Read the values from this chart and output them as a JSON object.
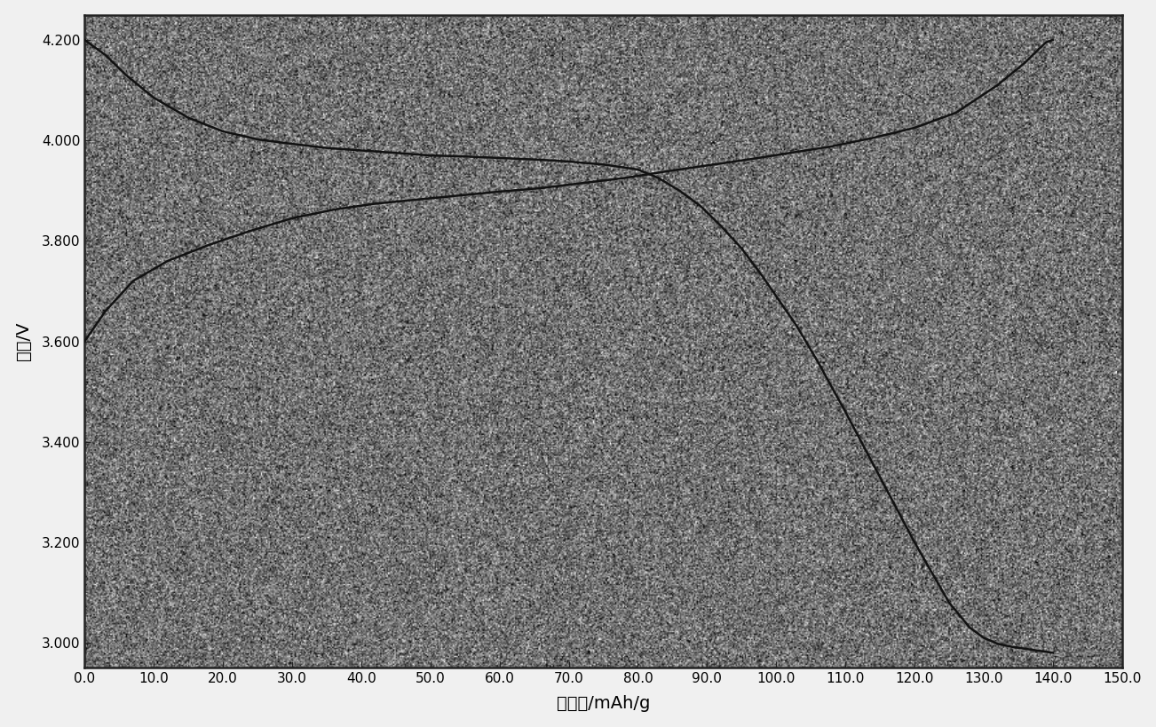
{
  "xlabel": "比容量/mAh/g",
  "ylabel": "电压/V",
  "xlim": [
    0.0,
    150.0
  ],
  "ylim": [
    2.95,
    4.25
  ],
  "xticks": [
    0.0,
    10.0,
    20.0,
    30.0,
    40.0,
    50.0,
    60.0,
    70.0,
    80.0,
    90.0,
    100.0,
    110.0,
    120.0,
    130.0,
    140.0,
    150.0
  ],
  "yticks": [
    3.0,
    3.2,
    3.4,
    3.6,
    3.8,
    4.0,
    4.2
  ],
  "background_color": "#c0c0c0",
  "line_color": "#111111",
  "grid_color": "#808080",
  "charge_curve_x": [
    0,
    3,
    7,
    12,
    18,
    24,
    30,
    36,
    42,
    48,
    54,
    60,
    66,
    72,
    78,
    84,
    90,
    96,
    102,
    108,
    114,
    120,
    126,
    132,
    136,
    138,
    139,
    140
  ],
  "charge_curve_y": [
    3.6,
    3.66,
    3.72,
    3.76,
    3.792,
    3.82,
    3.845,
    3.862,
    3.874,
    3.882,
    3.89,
    3.898,
    3.905,
    3.915,
    3.925,
    3.938,
    3.95,
    3.962,
    3.975,
    3.988,
    4.005,
    4.025,
    4.055,
    4.11,
    4.155,
    4.182,
    4.195,
    4.2
  ],
  "discharge_curve_x": [
    0,
    1,
    3,
    6,
    10,
    15,
    20,
    25,
    30,
    35,
    40,
    45,
    50,
    55,
    60,
    65,
    70,
    75,
    80,
    83,
    86,
    89,
    92,
    95,
    98,
    100,
    103,
    106,
    110,
    115,
    120,
    125,
    128,
    130,
    132,
    134,
    136,
    138,
    139,
    140
  ],
  "discharge_curve_y": [
    4.2,
    4.19,
    4.17,
    4.13,
    4.085,
    4.045,
    4.018,
    4.002,
    3.993,
    3.985,
    3.98,
    3.975,
    3.97,
    3.968,
    3.965,
    3.962,
    3.958,
    3.952,
    3.942,
    3.925,
    3.9,
    3.87,
    3.83,
    3.785,
    3.73,
    3.69,
    3.63,
    3.56,
    3.46,
    3.33,
    3.2,
    3.08,
    3.03,
    3.01,
    2.998,
    2.992,
    2.988,
    2.984,
    2.982,
    2.98
  ]
}
